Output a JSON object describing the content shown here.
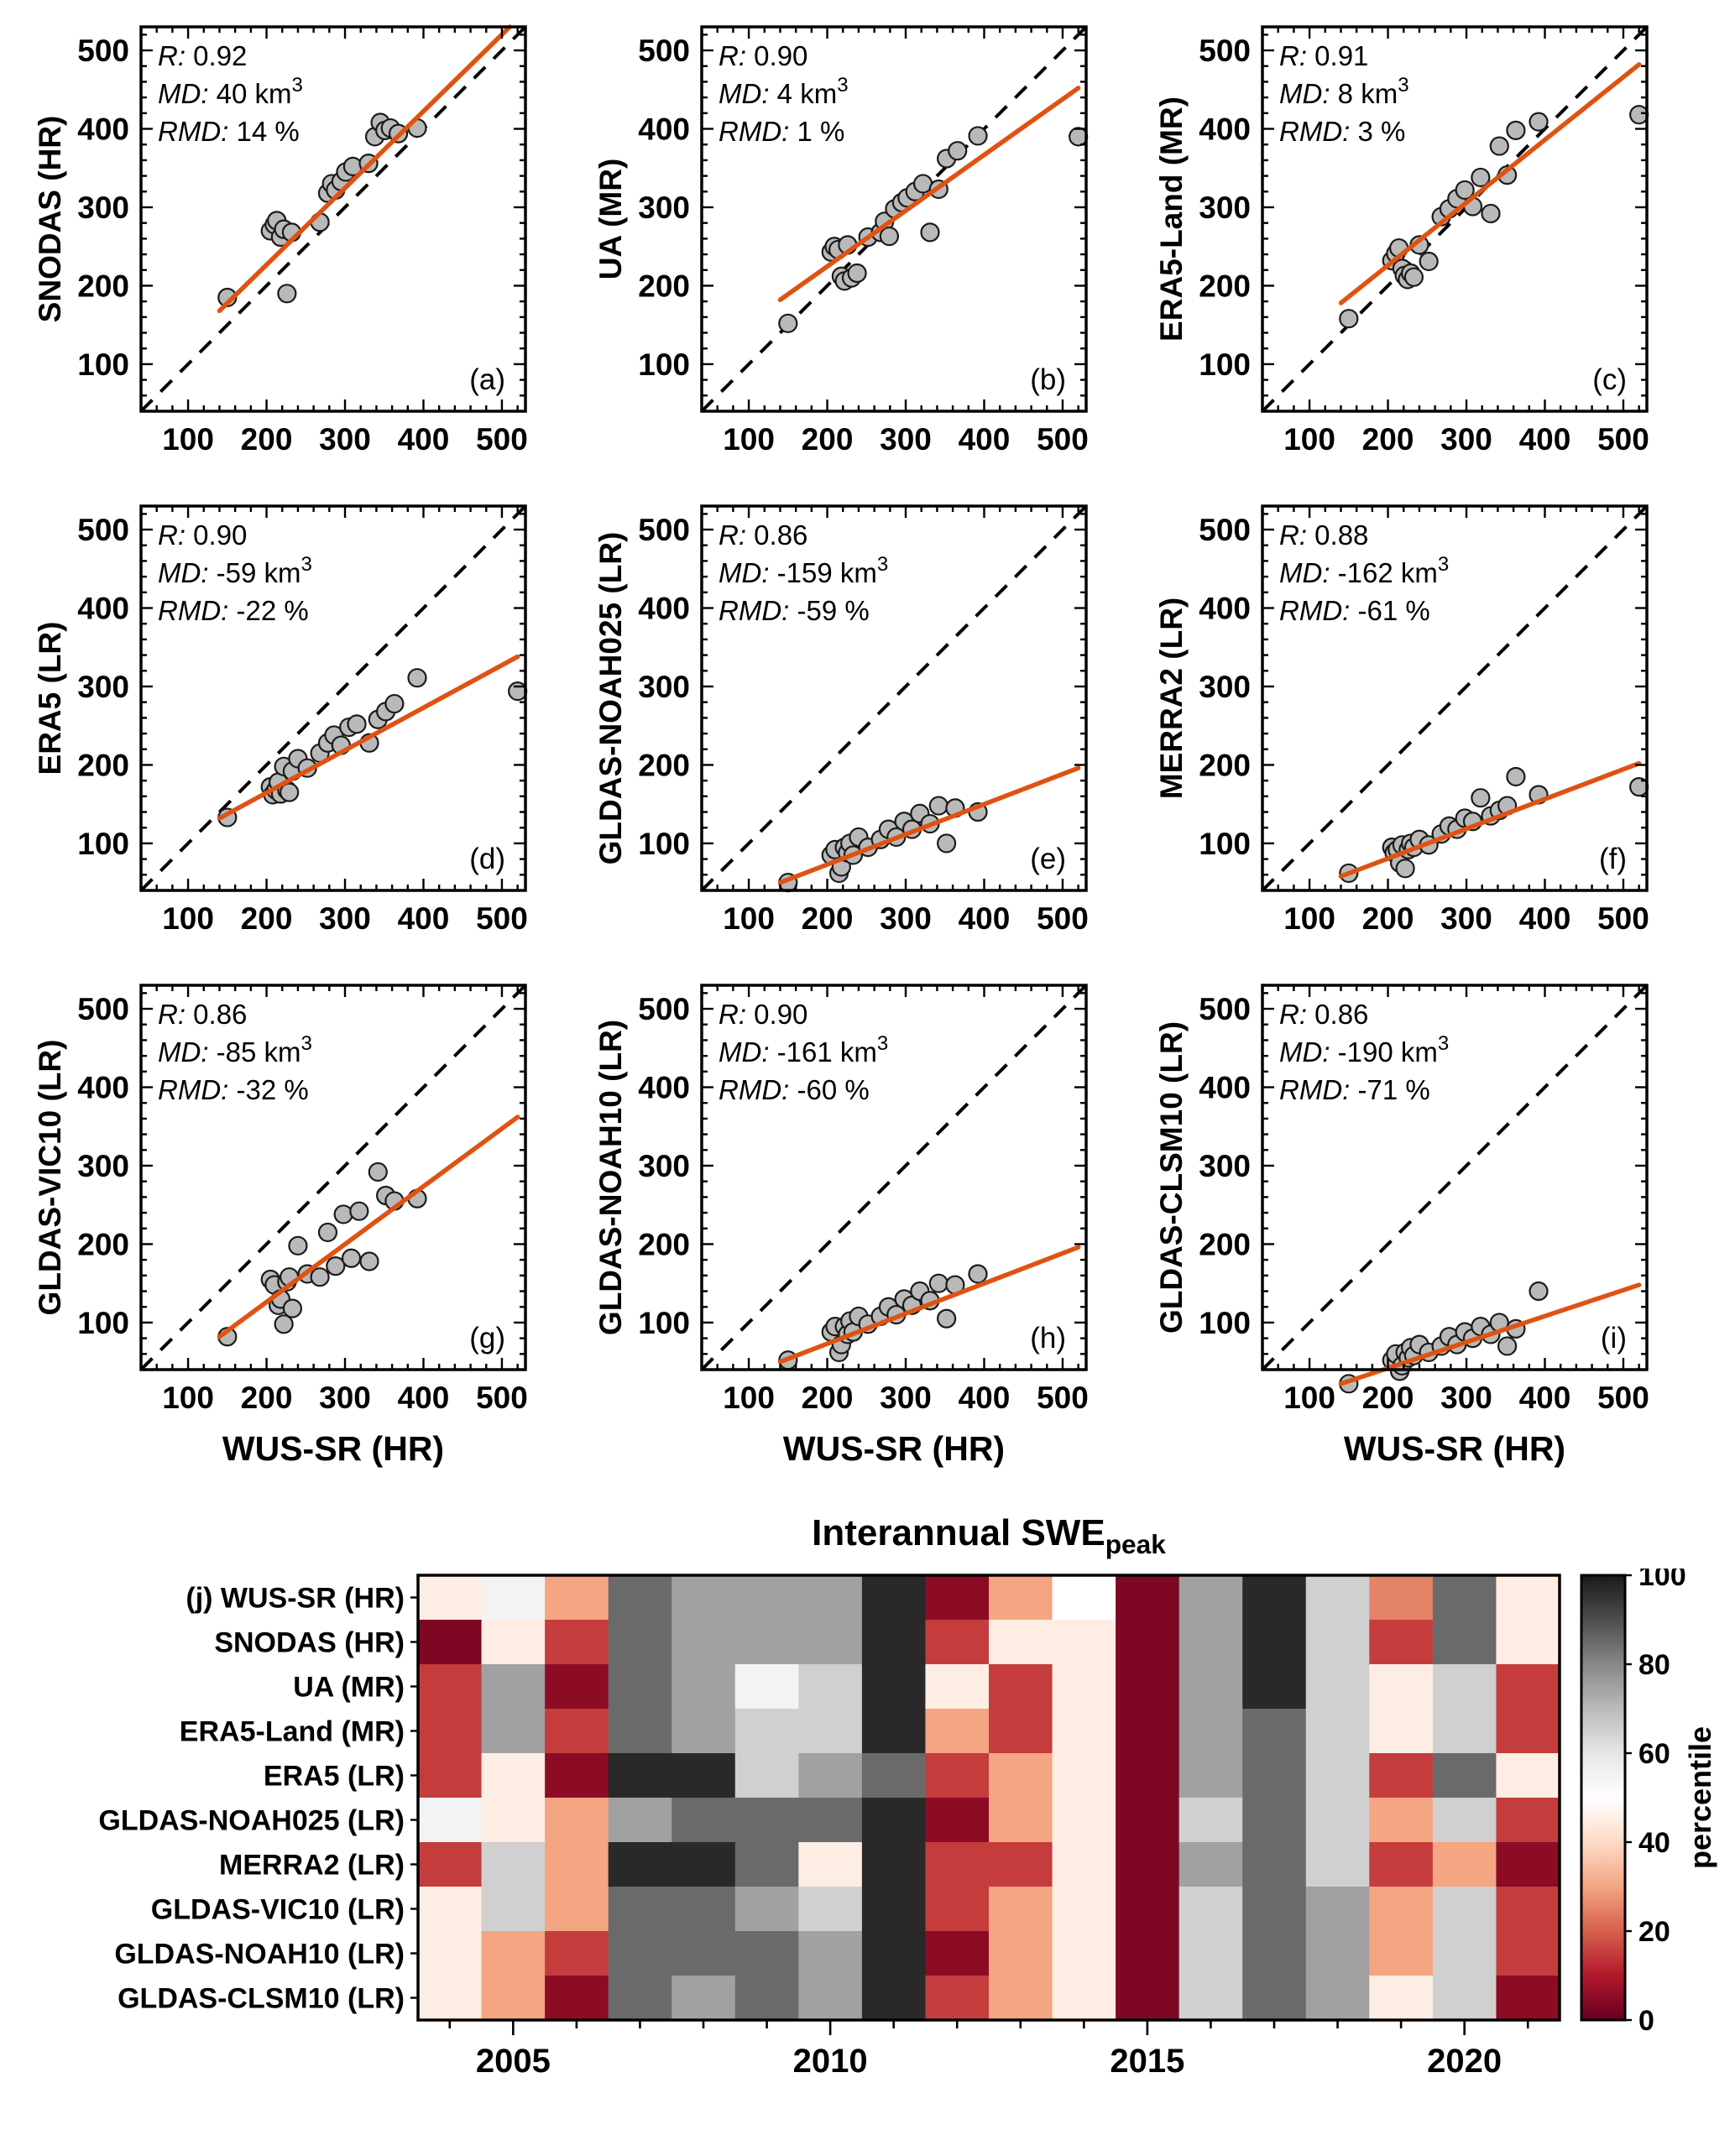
{
  "figure": {
    "axis": {
      "min": 40,
      "max": 530,
      "ticks": [
        100,
        200,
        300,
        400,
        500
      ],
      "minor_step": 20
    },
    "xlabel": "WUS-SR (HR)",
    "stats_labels": {
      "r": "R:",
      "md": "MD:",
      "rmd": "RMD:"
    },
    "unit": "km",
    "unit_sup": "3",
    "pct": "%"
  },
  "style": {
    "point_fill": "#b9b9b9",
    "point_stroke": "#1a1a1a",
    "fit_color": "#e05212",
    "identity_color": "#000000",
    "colormap": [
      {
        "v": 0,
        "c": "#67001f"
      },
      {
        "v": 10,
        "c": "#b2182b"
      },
      {
        "v": 20,
        "c": "#d6604d"
      },
      {
        "v": 30,
        "c": "#f4a582"
      },
      {
        "v": 40,
        "c": "#fddbc7"
      },
      {
        "v": 50,
        "c": "#ffffff"
      },
      {
        "v": 60,
        "c": "#e6e6e6"
      },
      {
        "v": 70,
        "c": "#bababa"
      },
      {
        "v": 80,
        "c": "#878787"
      },
      {
        "v": 90,
        "c": "#4d4d4d"
      },
      {
        "v": 100,
        "c": "#1a1a1a"
      }
    ]
  },
  "chart_data": [
    {
      "type": "scatter",
      "id": "a",
      "label": "(a)",
      "ylabel": "SNODAS (HR)",
      "xlabel": "WUS-SR (HR)",
      "R": "0.92",
      "MD": "40",
      "RMD": "14",
      "xlim": [
        40,
        530
      ],
      "ylim": [
        40,
        530
      ],
      "fit": {
        "x": [
          140,
          510
        ],
        "y": [
          168,
          530
        ]
      },
      "points": [
        [
          150,
          185
        ],
        [
          205,
          270
        ],
        [
          210,
          278
        ],
        [
          213,
          283
        ],
        [
          218,
          262
        ],
        [
          222,
          272
        ],
        [
          226,
          190
        ],
        [
          232,
          268
        ],
        [
          268,
          281
        ],
        [
          278,
          318
        ],
        [
          283,
          330
        ],
        [
          288,
          322
        ],
        [
          295,
          333
        ],
        [
          301,
          345
        ],
        [
          310,
          352
        ],
        [
          330,
          356
        ],
        [
          338,
          390
        ],
        [
          345,
          408
        ],
        [
          351,
          398
        ],
        [
          358,
          401
        ],
        [
          368,
          394
        ],
        [
          392,
          401
        ]
      ]
    },
    {
      "type": "scatter",
      "id": "b",
      "label": "(b)",
      "ylabel": "UA (MR)",
      "xlabel": "WUS-SR (HR)",
      "R": "0.90",
      "MD": "4",
      "RMD": "1",
      "xlim": [
        40,
        530
      ],
      "ylim": [
        40,
        530
      ],
      "fit": {
        "x": [
          140,
          520
        ],
        "y": [
          182,
          452
        ]
      },
      "points": [
        [
          150,
          152
        ],
        [
          205,
          243
        ],
        [
          209,
          250
        ],
        [
          214,
          246
        ],
        [
          218,
          212
        ],
        [
          222,
          206
        ],
        [
          226,
          252
        ],
        [
          231,
          210
        ],
        [
          238,
          216
        ],
        [
          252,
          262
        ],
        [
          268,
          268
        ],
        [
          273,
          282
        ],
        [
          279,
          263
        ],
        [
          286,
          298
        ],
        [
          295,
          306
        ],
        [
          302,
          312
        ],
        [
          312,
          320
        ],
        [
          322,
          330
        ],
        [
          331,
          268
        ],
        [
          342,
          323
        ],
        [
          352,
          362
        ],
        [
          366,
          372
        ],
        [
          392,
          391
        ],
        [
          520,
          390
        ]
      ]
    },
    {
      "type": "scatter",
      "id": "c",
      "label": "(c)",
      "ylabel": "ERA5-Land (MR)",
      "xlabel": "WUS-SR (HR)",
      "R": "0.91",
      "MD": "8",
      "RMD": "3",
      "xlim": [
        40,
        530
      ],
      "ylim": [
        40,
        530
      ],
      "fit": {
        "x": [
          140,
          520
        ],
        "y": [
          178,
          482
        ]
      },
      "points": [
        [
          150,
          158
        ],
        [
          205,
          232
        ],
        [
          210,
          241
        ],
        [
          214,
          248
        ],
        [
          218,
          222
        ],
        [
          221,
          213
        ],
        [
          225,
          208
        ],
        [
          229,
          216
        ],
        [
          233,
          211
        ],
        [
          240,
          252
        ],
        [
          252,
          231
        ],
        [
          268,
          288
        ],
        [
          278,
          298
        ],
        [
          288,
          311
        ],
        [
          298,
          322
        ],
        [
          308,
          301
        ],
        [
          318,
          338
        ],
        [
          331,
          292
        ],
        [
          342,
          378
        ],
        [
          352,
          341
        ],
        [
          363,
          398
        ],
        [
          392,
          409
        ],
        [
          520,
          418
        ]
      ]
    },
    {
      "type": "scatter",
      "id": "d",
      "label": "(d)",
      "ylabel": "ERA5 (LR)",
      "xlabel": "WUS-SR (HR)",
      "R": "0.90",
      "MD": "-59",
      "RMD": "-22",
      "xlim": [
        40,
        530
      ],
      "ylim": [
        40,
        530
      ],
      "fit": {
        "x": [
          140,
          520
        ],
        "y": [
          132,
          338
        ]
      },
      "points": [
        [
          150,
          133
        ],
        [
          205,
          172
        ],
        [
          208,
          162
        ],
        [
          212,
          168
        ],
        [
          215,
          178
        ],
        [
          218,
          163
        ],
        [
          222,
          198
        ],
        [
          226,
          168
        ],
        [
          229,
          165
        ],
        [
          233,
          192
        ],
        [
          240,
          208
        ],
        [
          252,
          196
        ],
        [
          268,
          215
        ],
        [
          278,
          228
        ],
        [
          286,
          238
        ],
        [
          295,
          225
        ],
        [
          305,
          248
        ],
        [
          315,
          252
        ],
        [
          331,
          228
        ],
        [
          342,
          258
        ],
        [
          352,
          268
        ],
        [
          363,
          278
        ],
        [
          392,
          311
        ],
        [
          520,
          294
        ]
      ]
    },
    {
      "type": "scatter",
      "id": "e",
      "label": "(e)",
      "ylabel": "GLDAS-NOAH025 (LR)",
      "xlabel": "WUS-SR (HR)",
      "R": "0.86",
      "MD": "-159",
      "RMD": "-59",
      "xlim": [
        40,
        530
      ],
      "ylim": [
        40,
        530
      ],
      "fit": {
        "x": [
          140,
          520
        ],
        "y": [
          50,
          196
        ]
      },
      "points": [
        [
          150,
          50
        ],
        [
          205,
          85
        ],
        [
          210,
          92
        ],
        [
          215,
          62
        ],
        [
          218,
          70
        ],
        [
          222,
          95
        ],
        [
          226,
          88
        ],
        [
          229,
          100
        ],
        [
          233,
          85
        ],
        [
          240,
          108
        ],
        [
          252,
          95
        ],
        [
          268,
          105
        ],
        [
          278,
          118
        ],
        [
          288,
          108
        ],
        [
          298,
          128
        ],
        [
          308,
          118
        ],
        [
          318,
          138
        ],
        [
          331,
          125
        ],
        [
          342,
          148
        ],
        [
          352,
          100
        ],
        [
          363,
          145
        ],
        [
          392,
          140
        ]
      ]
    },
    {
      "type": "scatter",
      "id": "f",
      "label": "(f)",
      "ylabel": "MERRA2 (LR)",
      "xlabel": "WUS-SR (HR)",
      "R": "0.88",
      "MD": "-162",
      "RMD": "-61",
      "xlim": [
        40,
        530
      ],
      "ylim": [
        40,
        530
      ],
      "fit": {
        "x": [
          140,
          520
        ],
        "y": [
          58,
          202
        ]
      },
      "points": [
        [
          150,
          62
        ],
        [
          205,
          95
        ],
        [
          208,
          88
        ],
        [
          212,
          92
        ],
        [
          215,
          75
        ],
        [
          218,
          98
        ],
        [
          222,
          68
        ],
        [
          226,
          92
        ],
        [
          229,
          100
        ],
        [
          233,
          95
        ],
        [
          240,
          105
        ],
        [
          252,
          98
        ],
        [
          268,
          112
        ],
        [
          278,
          122
        ],
        [
          288,
          118
        ],
        [
          298,
          132
        ],
        [
          308,
          128
        ],
        [
          318,
          158
        ],
        [
          331,
          135
        ],
        [
          342,
          142
        ],
        [
          352,
          148
        ],
        [
          363,
          185
        ],
        [
          392,
          162
        ],
        [
          520,
          172
        ]
      ]
    },
    {
      "type": "scatter",
      "id": "g",
      "label": "(g)",
      "ylabel": "GLDAS-VIC10 (LR)",
      "xlabel": "WUS-SR (HR)",
      "R": "0.86",
      "MD": "-85",
      "RMD": "-32",
      "xlim": [
        40,
        530
      ],
      "ylim": [
        40,
        530
      ],
      "fit": {
        "x": [
          140,
          520
        ],
        "y": [
          82,
          362
        ]
      },
      "points": [
        [
          150,
          82
        ],
        [
          205,
          155
        ],
        [
          210,
          148
        ],
        [
          215,
          122
        ],
        [
          218,
          130
        ],
        [
          222,
          98
        ],
        [
          226,
          152
        ],
        [
          229,
          158
        ],
        [
          233,
          118
        ],
        [
          240,
          198
        ],
        [
          252,
          162
        ],
        [
          268,
          158
        ],
        [
          278,
          215
        ],
        [
          288,
          172
        ],
        [
          298,
          238
        ],
        [
          308,
          182
        ],
        [
          318,
          242
        ],
        [
          331,
          178
        ],
        [
          342,
          292
        ],
        [
          352,
          262
        ],
        [
          363,
          255
        ],
        [
          392,
          258
        ]
      ]
    },
    {
      "type": "scatter",
      "id": "h",
      "label": "(h)",
      "ylabel": "GLDAS-NOAH10 (LR)",
      "xlabel": "WUS-SR (HR)",
      "R": "0.90",
      "MD": "-161",
      "RMD": "-60",
      "xlim": [
        40,
        530
      ],
      "ylim": [
        40,
        530
      ],
      "fit": {
        "x": [
          140,
          520
        ],
        "y": [
          50,
          196
        ]
      },
      "points": [
        [
          150,
          52
        ],
        [
          205,
          88
        ],
        [
          210,
          95
        ],
        [
          215,
          62
        ],
        [
          218,
          72
        ],
        [
          222,
          95
        ],
        [
          226,
          85
        ],
        [
          229,
          102
        ],
        [
          233,
          88
        ],
        [
          240,
          108
        ],
        [
          252,
          98
        ],
        [
          268,
          108
        ],
        [
          278,
          120
        ],
        [
          288,
          110
        ],
        [
          298,
          130
        ],
        [
          308,
          122
        ],
        [
          318,
          140
        ],
        [
          331,
          128
        ],
        [
          342,
          150
        ],
        [
          352,
          105
        ],
        [
          363,
          148
        ],
        [
          392,
          162
        ]
      ]
    },
    {
      "type": "scatter",
      "id": "i",
      "label": "(i)",
      "ylabel": "GLDAS-CLSM10 (LR)",
      "xlabel": "WUS-SR (HR)",
      "R": "0.86",
      "MD": "-190",
      "RMD": "-71",
      "xlim": [
        40,
        530
      ],
      "ylim": [
        40,
        530
      ],
      "fit": {
        "x": [
          140,
          520
        ],
        "y": [
          22,
          148
        ]
      },
      "points": [
        [
          150,
          22
        ],
        [
          205,
          52
        ],
        [
          210,
          60
        ],
        [
          215,
          38
        ],
        [
          218,
          45
        ],
        [
          222,
          62
        ],
        [
          226,
          55
        ],
        [
          229,
          68
        ],
        [
          233,
          58
        ],
        [
          240,
          72
        ],
        [
          252,
          62
        ],
        [
          268,
          70
        ],
        [
          278,
          82
        ],
        [
          288,
          72
        ],
        [
          298,
          88
        ],
        [
          308,
          80
        ],
        [
          318,
          95
        ],
        [
          331,
          85
        ],
        [
          342,
          100
        ],
        [
          352,
          70
        ],
        [
          363,
          92
        ],
        [
          392,
          140
        ]
      ]
    },
    {
      "type": "heatmap",
      "title_main": "Interannual SWE",
      "title_sub": "peak",
      "row_prefix": "(j)",
      "rows": [
        "WUS-SR (HR)",
        "SNODAS (HR)",
        "UA (MR)",
        "ERA5-Land (MR)",
        "ERA5 (LR)",
        "GLDAS-NOAH025 (LR)",
        "MERRA2 (LR)",
        "GLDAS-VIC10 (LR)",
        "GLDAS-NOAH10 (LR)",
        "GLDAS-CLSM10 (LR)"
      ],
      "years": [
        2004,
        2005,
        2006,
        2007,
        2008,
        2009,
        2010,
        2011,
        2012,
        2013,
        2014,
        2015,
        2016,
        2017,
        2018,
        2019,
        2020,
        2021
      ],
      "year_ticks": [
        2005,
        2010,
        2015,
        2020
      ],
      "clim": [
        0,
        100
      ],
      "colorbar": {
        "label": "percentile",
        "ticks": [
          0,
          20,
          40,
          60,
          80,
          100
        ]
      },
      "values": [
        [
          45,
          55,
          30,
          85,
          75,
          75,
          75,
          97,
          5,
          30,
          50,
          3,
          75,
          97,
          65,
          25,
          85,
          45
        ],
        [
          3,
          45,
          15,
          85,
          75,
          75,
          75,
          97,
          15,
          45,
          45,
          3,
          75,
          97,
          65,
          15,
          85,
          45
        ],
        [
          15,
          75,
          5,
          85,
          75,
          55,
          65,
          97,
          45,
          15,
          45,
          3,
          75,
          97,
          65,
          45,
          65,
          15
        ],
        [
          15,
          75,
          15,
          85,
          75,
          65,
          65,
          97,
          30,
          15,
          45,
          3,
          75,
          85,
          65,
          45,
          65,
          15
        ],
        [
          15,
          45,
          5,
          97,
          97,
          65,
          75,
          85,
          15,
          30,
          45,
          3,
          75,
          85,
          65,
          15,
          85,
          45
        ],
        [
          55,
          45,
          30,
          75,
          85,
          85,
          85,
          97,
          5,
          30,
          45,
          3,
          65,
          85,
          65,
          30,
          65,
          15
        ],
        [
          15,
          65,
          30,
          97,
          97,
          85,
          45,
          97,
          15,
          15,
          45,
          3,
          75,
          85,
          65,
          15,
          30,
          5
        ],
        [
          45,
          65,
          30,
          85,
          85,
          75,
          65,
          97,
          15,
          30,
          45,
          3,
          65,
          85,
          75,
          30,
          65,
          15
        ],
        [
          45,
          30,
          15,
          85,
          85,
          85,
          75,
          97,
          5,
          30,
          45,
          3,
          65,
          85,
          75,
          30,
          65,
          15
        ],
        [
          45,
          30,
          5,
          85,
          75,
          85,
          75,
          97,
          15,
          30,
          45,
          3,
          65,
          85,
          75,
          45,
          65,
          5
        ]
      ]
    }
  ]
}
